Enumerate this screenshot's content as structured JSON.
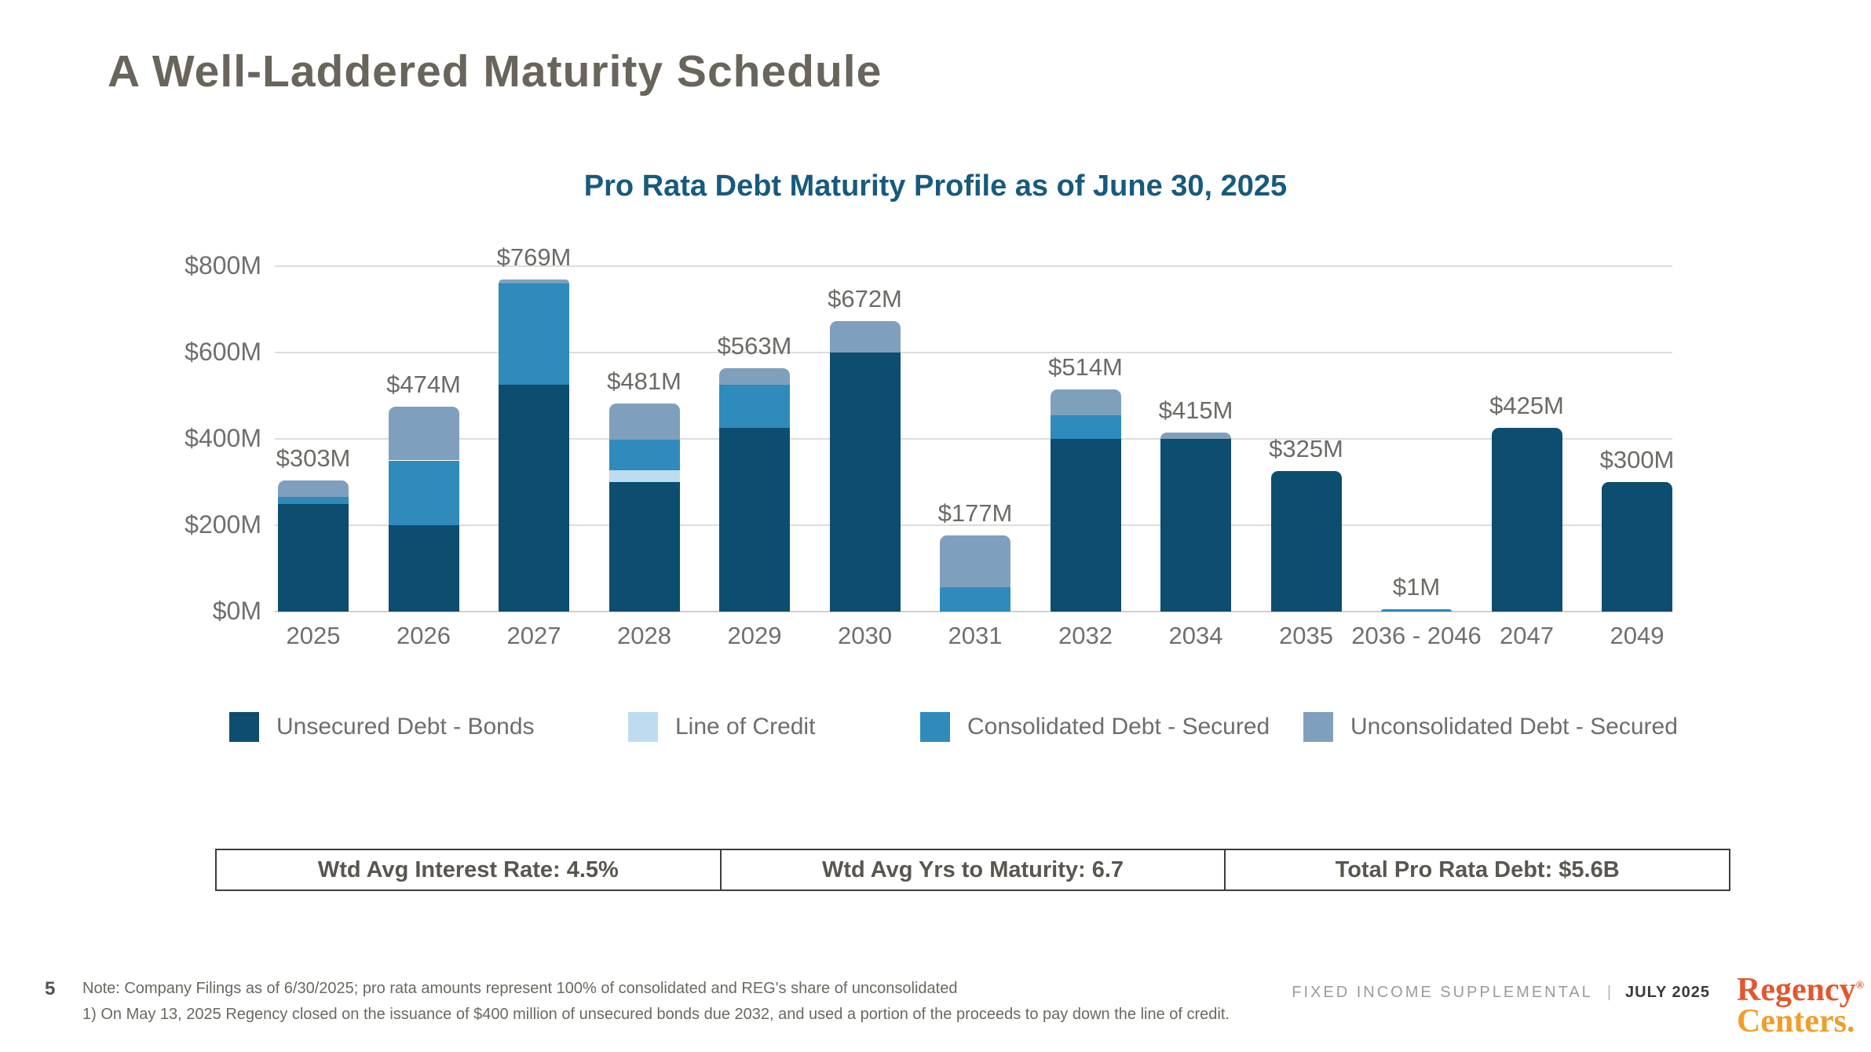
{
  "slide": {
    "title": "A Well-Laddered Maturity Schedule",
    "page_number": "5",
    "notes": {
      "line1": "Note: Company Filings as of 6/30/2025; pro rata amounts represent 100% of consolidated and REG's share of unconsolidated",
      "line2": "1) On May 13, 2025 Regency closed on the issuance of $400 million of unsecured bonds due 2032, and used a portion of the proceeds to pay down the line of credit."
    },
    "footer": {
      "doc_label": "FIXED INCOME SUPPLEMENTAL",
      "separator": "|",
      "date_label": "JULY 2025"
    },
    "logo": {
      "line1": "Regency",
      "registered_mark": "®",
      "line2": "Centers.",
      "color_line1": "#E2572F",
      "color_line2": "#F09D2B"
    }
  },
  "stats": [
    {
      "label": "Wtd Avg Interest Rate: 4.5%"
    },
    {
      "label": "Wtd Avg Yrs to Maturity: 6.7"
    },
    {
      "label": "Total Pro Rata Debt: $5.6B"
    }
  ],
  "chart_data": {
    "type": "bar",
    "stacked": true,
    "title": "Pro Rata Debt Maturity Profile as of June 30, 2025",
    "units": "USD millions",
    "categories": [
      "2025",
      "2026",
      "2027",
      "2028",
      "2029",
      "2030",
      "2031",
      "2032",
      "2034",
      "2035",
      "2036 - 2046",
      "2047",
      "2049"
    ],
    "series": [
      {
        "name": "Unsecured Debt - Bonds",
        "color": "#0D4D70",
        "values": [
          250,
          200,
          525,
          300,
          425,
          600,
          0,
          400,
          400,
          325,
          0,
          425,
          300
        ]
      },
      {
        "name": "Line of Credit",
        "color": "#BEDCF0",
        "values": [
          0,
          0,
          0,
          28,
          0,
          0,
          0,
          0,
          0,
          0,
          0,
          0,
          0
        ]
      },
      {
        "name": "Consolidated Debt - Secured",
        "color": "#2E8BBC",
        "values": [
          15,
          150,
          235,
          70,
          100,
          0,
          57,
          55,
          0,
          0,
          1,
          0,
          0
        ]
      },
      {
        "name": "Unconsolidated Debt - Secured",
        "color": "#7FA0BC",
        "values": [
          38,
          124,
          9,
          83,
          38,
          72,
          120,
          59,
          15,
          0,
          0,
          0,
          0
        ]
      }
    ],
    "totals": [
      303,
      474,
      769,
      481,
      563,
      672,
      177,
      514,
      415,
      325,
      1,
      425,
      300
    ],
    "data_labels": [
      "$303M",
      "$474M",
      "$769M",
      "$481M",
      "$563M",
      "$672M",
      "$177M",
      "$514M",
      "$415M",
      "$325M",
      "$1M",
      "$425M",
      "$300M"
    ],
    "y_axis": {
      "range": [
        0,
        800
      ],
      "gridlines": true,
      "ticks": [
        {
          "value": 0,
          "label": "$0M"
        },
        {
          "value": 200,
          "label": "$200M"
        },
        {
          "value": 400,
          "label": "$400M"
        },
        {
          "value": 600,
          "label": "$600M"
        },
        {
          "value": 800,
          "label": "$800M"
        }
      ]
    },
    "legend_position": "bottom"
  }
}
